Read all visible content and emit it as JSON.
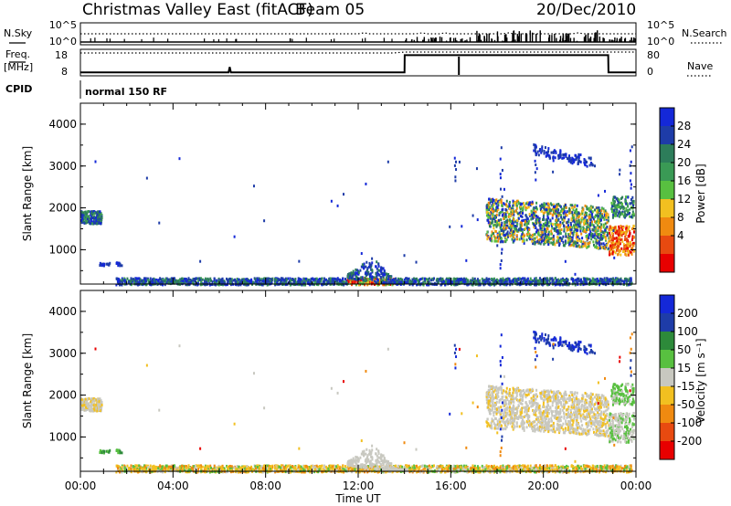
{
  "header": {
    "station": "Christmas Valley East (fitACF)",
    "beam": "Beam 05",
    "date": "20/Dec/2010"
  },
  "labels": {
    "nsky": "N.Sky",
    "nsearch": "N.Search",
    "freq": "Freq.",
    "freq_unit": "[MHz]",
    "nave": "Nave",
    "cpid": "CPID",
    "cpid_value": "normal 150 RF",
    "ylabel": "Slant Range [km]",
    "xlabel": "Time UT",
    "power_label": "Power [dB]",
    "velocity_label": "Velocity [m s⁻¹]"
  },
  "colors": {
    "power_scale": [
      "#1428d8",
      "#1e3ca8",
      "#2d7d5a",
      "#3a9a55",
      "#58c040",
      "#f2c020",
      "#f08a10",
      "#e84a10",
      "#e80000"
    ],
    "velocity_scale": [
      "#1428d8",
      "#1e3ca8",
      "#2d8a3a",
      "#58c040",
      "#c8c8c0",
      "#f2c020",
      "#f08a10",
      "#e84a10",
      "#e80000"
    ],
    "ground_scatter": "#c8c8c0"
  },
  "chart_data": [
    {
      "type": "line",
      "name": "noise-panel",
      "left_axis": {
        "label": "N.Sky",
        "ticks": [
          "10^5",
          "10^0"
        ]
      },
      "right_axis": {
        "label": "N.Search",
        "ticks": [
          "10^5",
          "10^0"
        ]
      }
    },
    {
      "type": "line",
      "name": "frequency-panel",
      "left_axis": {
        "label": "Freq. [MHz]",
        "ticks": [
          18,
          8
        ],
        "ylim": [
          8,
          18
        ]
      },
      "right_axis": {
        "label": "Nave",
        "ticks": [
          80,
          0
        ],
        "ylim": [
          0,
          80
        ]
      },
      "freq_series": {
        "x": [
          0,
          6.4,
          6.45,
          6.5,
          14.0,
          14.01,
          22.8,
          22.81,
          24
        ],
        "y": [
          10,
          10,
          12,
          10,
          10,
          16.5,
          16.5,
          10,
          10
        ]
      }
    },
    {
      "type": "heatmap",
      "name": "power-panel",
      "ylabel": "Slant Range [km]",
      "ylim": [
        180,
        4500
      ],
      "yticks": [
        1000,
        2000,
        3000,
        4000
      ],
      "xticks": [
        "00:00",
        "04:00",
        "08:00",
        "12:00",
        "16:00",
        "20:00",
        "00:00"
      ],
      "colorbar": {
        "label": "Power [dB]",
        "ticks": [
          4,
          8,
          12,
          16,
          20,
          24,
          28
        ]
      }
    },
    {
      "type": "heatmap",
      "name": "velocity-panel",
      "ylabel": "Slant Range [km]",
      "ylim": [
        180,
        4500
      ],
      "yticks": [
        1000,
        2000,
        3000,
        4000
      ],
      "xticks": [
        "00:00",
        "04:00",
        "08:00",
        "12:00",
        "16:00",
        "20:00",
        "00:00"
      ],
      "xlabel": "Time UT",
      "colorbar": {
        "label": "Velocity [m s⁻¹]",
        "ticks": [
          200,
          100,
          50,
          15,
          -15,
          -50,
          -100,
          -200
        ]
      }
    }
  ]
}
